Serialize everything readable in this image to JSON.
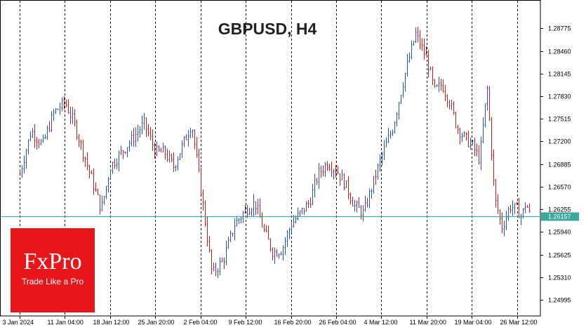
{
  "title": "GBPUSD, H4",
  "logo": {
    "name": "FxPro",
    "tagline": "Trade Like a Pro"
  },
  "colors": {
    "up_bar": "#1f4fd6",
    "down_bar": "#d01818",
    "current_price_line": "#3aa89b",
    "logo_bg": "#e8161b"
  },
  "chart_data": {
    "type": "ohlc",
    "symbol": "GBPUSD",
    "timeframe": "H4",
    "y_ticks": [
      "1.24995",
      "1.25310",
      "1.25625",
      "1.25940",
      "1.26255",
      "1.26570",
      "1.26885",
      "1.27200",
      "1.27515",
      "1.27830",
      "1.28145",
      "1.28460",
      "1.28775"
    ],
    "ylim": [
      1.2477,
      1.2917
    ],
    "x_ticks": [
      "3 Jan 2024",
      "11 Jan 04:00",
      "18 Jan 12:00",
      "25 Jan 20:00",
      "2 Feb 04:00",
      "9 Feb 12:00",
      "16 Feb 20:00",
      "26 Feb 04:00",
      "4 Mar 12:00",
      "11 Mar 20:00",
      "19 Mar 04:00",
      "26 Mar 12:00"
    ],
    "current_price": 1.26157,
    "current_price_label": "1.26157",
    "grid": "vertical dashed",
    "close_path": [
      {
        "date": "3 Jan 2024",
        "close": 1.2675
      },
      {
        "date": "5 Jan 2024",
        "close": 1.2735
      },
      {
        "date": "8 Jan 2024",
        "close": 1.2715
      },
      {
        "date": "10 Jan 2024",
        "close": 1.276
      },
      {
        "date": "11 Jan 04:00",
        "close": 1.2775
      },
      {
        "date": "12 Jan 2024",
        "close": 1.2745
      },
      {
        "date": "15 Jan 2024",
        "close": 1.2705
      },
      {
        "date": "16 Jan 2024",
        "close": 1.2665
      },
      {
        "date": "17 Jan 2024",
        "close": 1.2625
      },
      {
        "date": "18 Jan 12:00",
        "close": 1.2685
      },
      {
        "date": "19 Jan 2024",
        "close": 1.2705
      },
      {
        "date": "22 Jan 2024",
        "close": 1.2725
      },
      {
        "date": "24 Jan 2024",
        "close": 1.2745
      },
      {
        "date": "25 Jan 20:00",
        "close": 1.2705
      },
      {
        "date": "29 Jan 2024",
        "close": 1.2705
      },
      {
        "date": "30 Jan 2024",
        "close": 1.2685
      },
      {
        "date": "31 Jan 2024",
        "close": 1.2715
      },
      {
        "date": "1 Feb 2024",
        "close": 1.2745
      },
      {
        "date": "2 Feb 04:00",
        "close": 1.2655
      },
      {
        "date": "5 Feb 2024",
        "close": 1.2535
      },
      {
        "date": "6 Feb 2024",
        "close": 1.2555
      },
      {
        "date": "7 Feb 2024",
        "close": 1.2605
      },
      {
        "date": "9 Feb 12:00",
        "close": 1.2625
      },
      {
        "date": "12 Feb 2024",
        "close": 1.2635
      },
      {
        "date": "13 Feb 2024",
        "close": 1.2595
      },
      {
        "date": "14 Feb 2024",
        "close": 1.2565
      },
      {
        "date": "15 Feb 2024",
        "close": 1.257
      },
      {
        "date": "16 Feb 20:00",
        "close": 1.2605
      },
      {
        "date": "19 Feb 2024",
        "close": 1.262
      },
      {
        "date": "20 Feb 2024",
        "close": 1.2635
      },
      {
        "date": "22 Feb 2024",
        "close": 1.2675
      },
      {
        "date": "23 Feb 2024",
        "close": 1.269
      },
      {
        "date": "26 Feb 04:00",
        "close": 1.268
      },
      {
        "date": "27 Feb 2024",
        "close": 1.266
      },
      {
        "date": "28 Feb 2024",
        "close": 1.263
      },
      {
        "date": "29 Feb 2024",
        "close": 1.262
      },
      {
        "date": "1 Mar 2024",
        "close": 1.266
      },
      {
        "date": "4 Mar 12:00",
        "close": 1.27
      },
      {
        "date": "6 Mar 2024",
        "close": 1.274
      },
      {
        "date": "7 Mar 2024",
        "close": 1.281
      },
      {
        "date": "8 Mar 2024",
        "close": 1.287
      },
      {
        "date": "11 Mar 20:00",
        "close": 1.2835
      },
      {
        "date": "12 Mar 2024",
        "close": 1.279
      },
      {
        "date": "13 Mar 2024",
        "close": 1.28
      },
      {
        "date": "14 Mar 2024",
        "close": 1.2775
      },
      {
        "date": "15 Mar 2024",
        "close": 1.274
      },
      {
        "date": "18 Mar 2024",
        "close": 1.2725
      },
      {
        "date": "19 Mar 04:00",
        "close": 1.2715
      },
      {
        "date": "20 Mar 2024",
        "close": 1.2695
      },
      {
        "date": "21 Mar 2024",
        "close": 1.2795
      },
      {
        "date": "21 Mar 12:00",
        "close": 1.264
      },
      {
        "date": "22 Mar 2024",
        "close": 1.26
      },
      {
        "date": "25 Mar 2024",
        "close": 1.263
      },
      {
        "date": "26 Mar 12:00",
        "close": 1.2625
      },
      {
        "date": "27 Mar 2024",
        "close": 1.2615
      },
      {
        "date": "28 Mar 2024",
        "close": 1.2635
      },
      {
        "date": "29 Mar 2024",
        "close": 1.2616
      }
    ]
  }
}
